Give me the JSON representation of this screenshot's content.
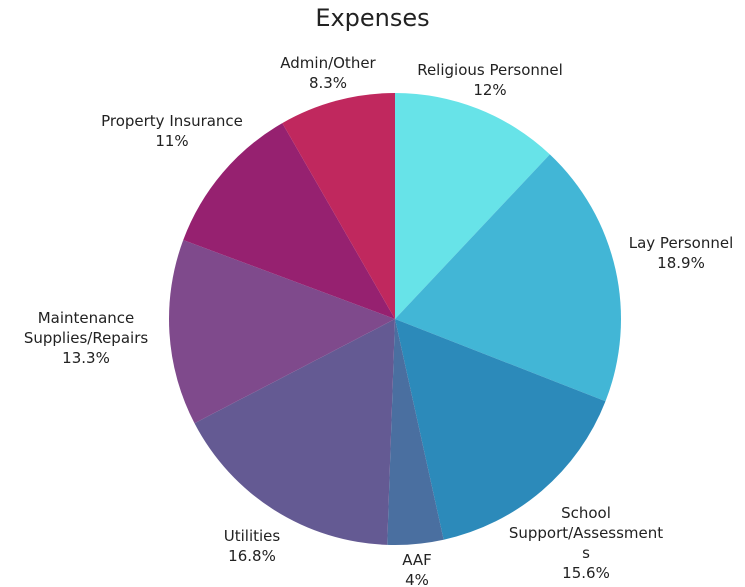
{
  "chart_data": {
    "type": "pie",
    "title": "Expenses",
    "categories": [
      "Religious Personnel",
      "Lay Personnel",
      "School Support/Assessments",
      "AAF",
      "Utilities",
      "Maintenance Supplies/Repairs",
      "Property Insurance",
      "Admin/Other"
    ],
    "values": [
      12,
      18.9,
      15.6,
      4,
      16.8,
      13.3,
      11,
      8.3
    ],
    "value_labels": [
      "12%",
      "18.9%",
      "15.6%",
      "4%",
      "16.8%",
      "13.3%",
      "11%",
      "8.3%"
    ],
    "colors": [
      "#67e3e8",
      "#42b6d6",
      "#2c8aba",
      "#4a6fa0",
      "#645a93",
      "#7f4a8c",
      "#962170",
      "#c0285e"
    ]
  }
}
